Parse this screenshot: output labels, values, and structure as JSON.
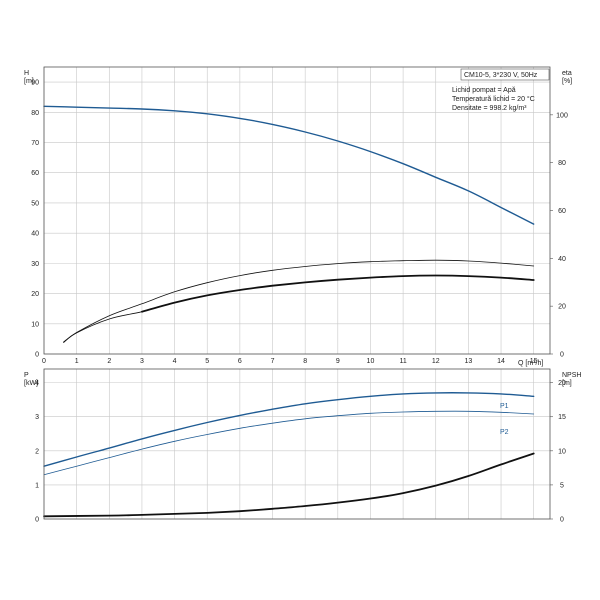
{
  "info_box": {
    "model": "CM10-5, 3*230 V, 50Hz",
    "lines": [
      "Lichid pompat = Apă",
      "Temperatură lichid = 20 °C",
      "Densitate = 998.2 kg/m³"
    ]
  },
  "colors": {
    "blue": "#1f5b93",
    "black": "#111111",
    "grid": "#c8c8c8",
    "frame": "#555555"
  },
  "chart_data": [
    {
      "type": "line",
      "xlabel": "Q [m³/h]",
      "ylabel": "H [m]",
      "y2label": "eta [%]",
      "xlim": [
        0,
        15.5
      ],
      "ylim": [
        0,
        95
      ],
      "y2lim": [
        0,
        120
      ],
      "x_ticks": [
        "0",
        "1",
        "2",
        "3",
        "4",
        "5",
        "6",
        "7",
        "8",
        "9",
        "10",
        "11",
        "12",
        "13",
        "14",
        "15"
      ],
      "y_ticks": [
        "0",
        "10",
        "20",
        "30",
        "40",
        "50",
        "60",
        "70",
        "80",
        "90"
      ],
      "y2_ticks": [
        "0",
        "20",
        "40",
        "60",
        "80",
        "100"
      ],
      "grid": true,
      "series": [
        {
          "axis": "left",
          "color": "blue",
          "width": 1.4,
          "x": [
            0,
            1,
            2,
            3,
            4,
            5,
            6,
            7,
            8,
            9,
            10,
            11,
            12,
            13,
            14,
            15
          ],
          "y": [
            82,
            81.7,
            81.4,
            81.1,
            80.5,
            79.5,
            78,
            76,
            73.5,
            70.5,
            67,
            63,
            58.5,
            54,
            48.5,
            43
          ]
        },
        {
          "axis": "right",
          "color": "black",
          "width": 0.8,
          "x": [
            0.6,
            1,
            2,
            3,
            4,
            5,
            6,
            7,
            8,
            9,
            10,
            11,
            12,
            13,
            14,
            15
          ],
          "y": [
            5,
            9,
            16,
            21,
            26,
            29.8,
            32.8,
            35,
            36.6,
            37.8,
            38.6,
            39,
            39.2,
            38.9,
            38,
            36.8
          ]
        },
        {
          "axis": "left",
          "color": "black",
          "width": 1.8,
          "x": [
            3,
            4,
            5,
            6,
            7,
            8,
            9,
            10,
            11,
            12,
            13,
            14,
            15
          ],
          "y": [
            14,
            17,
            19.4,
            21.2,
            22.6,
            23.7,
            24.6,
            25.3,
            25.8,
            26,
            25.8,
            25.3,
            24.5
          ]
        },
        {
          "axis": "left",
          "color": "black",
          "width": 0.8,
          "x": [
            0.6,
            1,
            2,
            3,
            4,
            5
          ],
          "y": [
            3.8,
            7,
            11.6,
            14,
            17,
            19.4
          ]
        }
      ]
    },
    {
      "type": "line",
      "ylabel": "P [kW]",
      "y2label": "NPSH [m]",
      "xlim": [
        0,
        15.5
      ],
      "ylim": [
        0,
        4.4
      ],
      "y2lim": [
        0,
        22
      ],
      "y_ticks": [
        "0",
        "1",
        "2",
        "3",
        "4"
      ],
      "y2_ticks": [
        "0",
        "5",
        "10",
        "15",
        "20"
      ],
      "grid": true,
      "series": [
        {
          "name": "P1",
          "axis": "left",
          "color": "blue",
          "width": 1.4,
          "x": [
            0,
            1,
            2,
            3,
            4,
            5,
            6,
            7,
            8,
            9,
            10,
            11,
            12,
            13,
            14,
            15
          ],
          "y": [
            1.55,
            1.82,
            2.08,
            2.35,
            2.6,
            2.83,
            3.04,
            3.22,
            3.38,
            3.5,
            3.6,
            3.67,
            3.7,
            3.7,
            3.67,
            3.6
          ]
        },
        {
          "name": "P2",
          "axis": "left",
          "color": "blue",
          "width": 0.8,
          "x": [
            0,
            1,
            2,
            3,
            4,
            5,
            6,
            7,
            8,
            9,
            10,
            11,
            12,
            13,
            14,
            15
          ],
          "y": [
            1.3,
            1.55,
            1.8,
            2.05,
            2.28,
            2.48,
            2.66,
            2.81,
            2.94,
            3.03,
            3.1,
            3.14,
            3.16,
            3.16,
            3.13,
            3.08
          ]
        },
        {
          "axis": "right",
          "color": "black",
          "width": 1.8,
          "x": [
            0,
            2,
            3,
            4,
            5,
            6,
            7,
            8,
            9,
            10,
            11,
            12,
            13,
            14,
            15
          ],
          "y": [
            0.4,
            0.5,
            0.6,
            0.75,
            0.9,
            1.15,
            1.5,
            1.9,
            2.4,
            3.0,
            3.8,
            4.9,
            6.3,
            8.0,
            9.6
          ]
        }
      ]
    }
  ]
}
